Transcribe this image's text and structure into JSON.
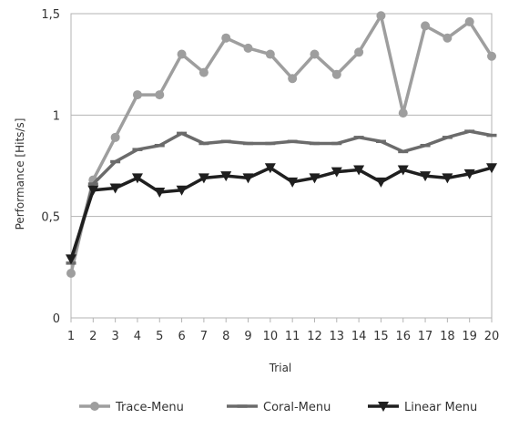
{
  "chart_data": {
    "type": "line",
    "title": "",
    "xlabel": "Trial",
    "ylabel": "Performance [Hits/s]",
    "x": [
      1,
      2,
      3,
      4,
      5,
      6,
      7,
      8,
      9,
      10,
      11,
      12,
      13,
      14,
      15,
      16,
      17,
      18,
      19,
      20
    ],
    "ylim": [
      0,
      1.5
    ],
    "yticks": [
      "0",
      "0,5",
      "1",
      "1,5"
    ],
    "grid": "horizontal",
    "legend_position": "bottom",
    "series": [
      {
        "name": "Trace-Menu",
        "color": "#9e9e9e",
        "marker": "circle",
        "values": [
          0.22,
          0.68,
          0.89,
          1.1,
          1.1,
          1.3,
          1.21,
          1.38,
          1.33,
          1.3,
          1.18,
          1.3,
          1.2,
          1.31,
          1.49,
          1.01,
          1.44,
          1.38,
          1.46,
          1.29
        ]
      },
      {
        "name": "Coral-Menu",
        "color": "#6b6b6b",
        "marker": "dash",
        "values": [
          0.27,
          0.66,
          0.77,
          0.83,
          0.85,
          0.91,
          0.86,
          0.87,
          0.86,
          0.86,
          0.87,
          0.86,
          0.86,
          0.89,
          0.87,
          0.82,
          0.85,
          0.89,
          0.92,
          0.9
        ]
      },
      {
        "name": "Linear Menu",
        "color": "#1f1f1f",
        "marker": "triangle-down",
        "values": [
          0.29,
          0.63,
          0.64,
          0.69,
          0.62,
          0.63,
          0.69,
          0.7,
          0.69,
          0.74,
          0.67,
          0.69,
          0.72,
          0.73,
          0.67,
          0.73,
          0.7,
          0.69,
          0.71,
          0.74
        ]
      }
    ]
  }
}
